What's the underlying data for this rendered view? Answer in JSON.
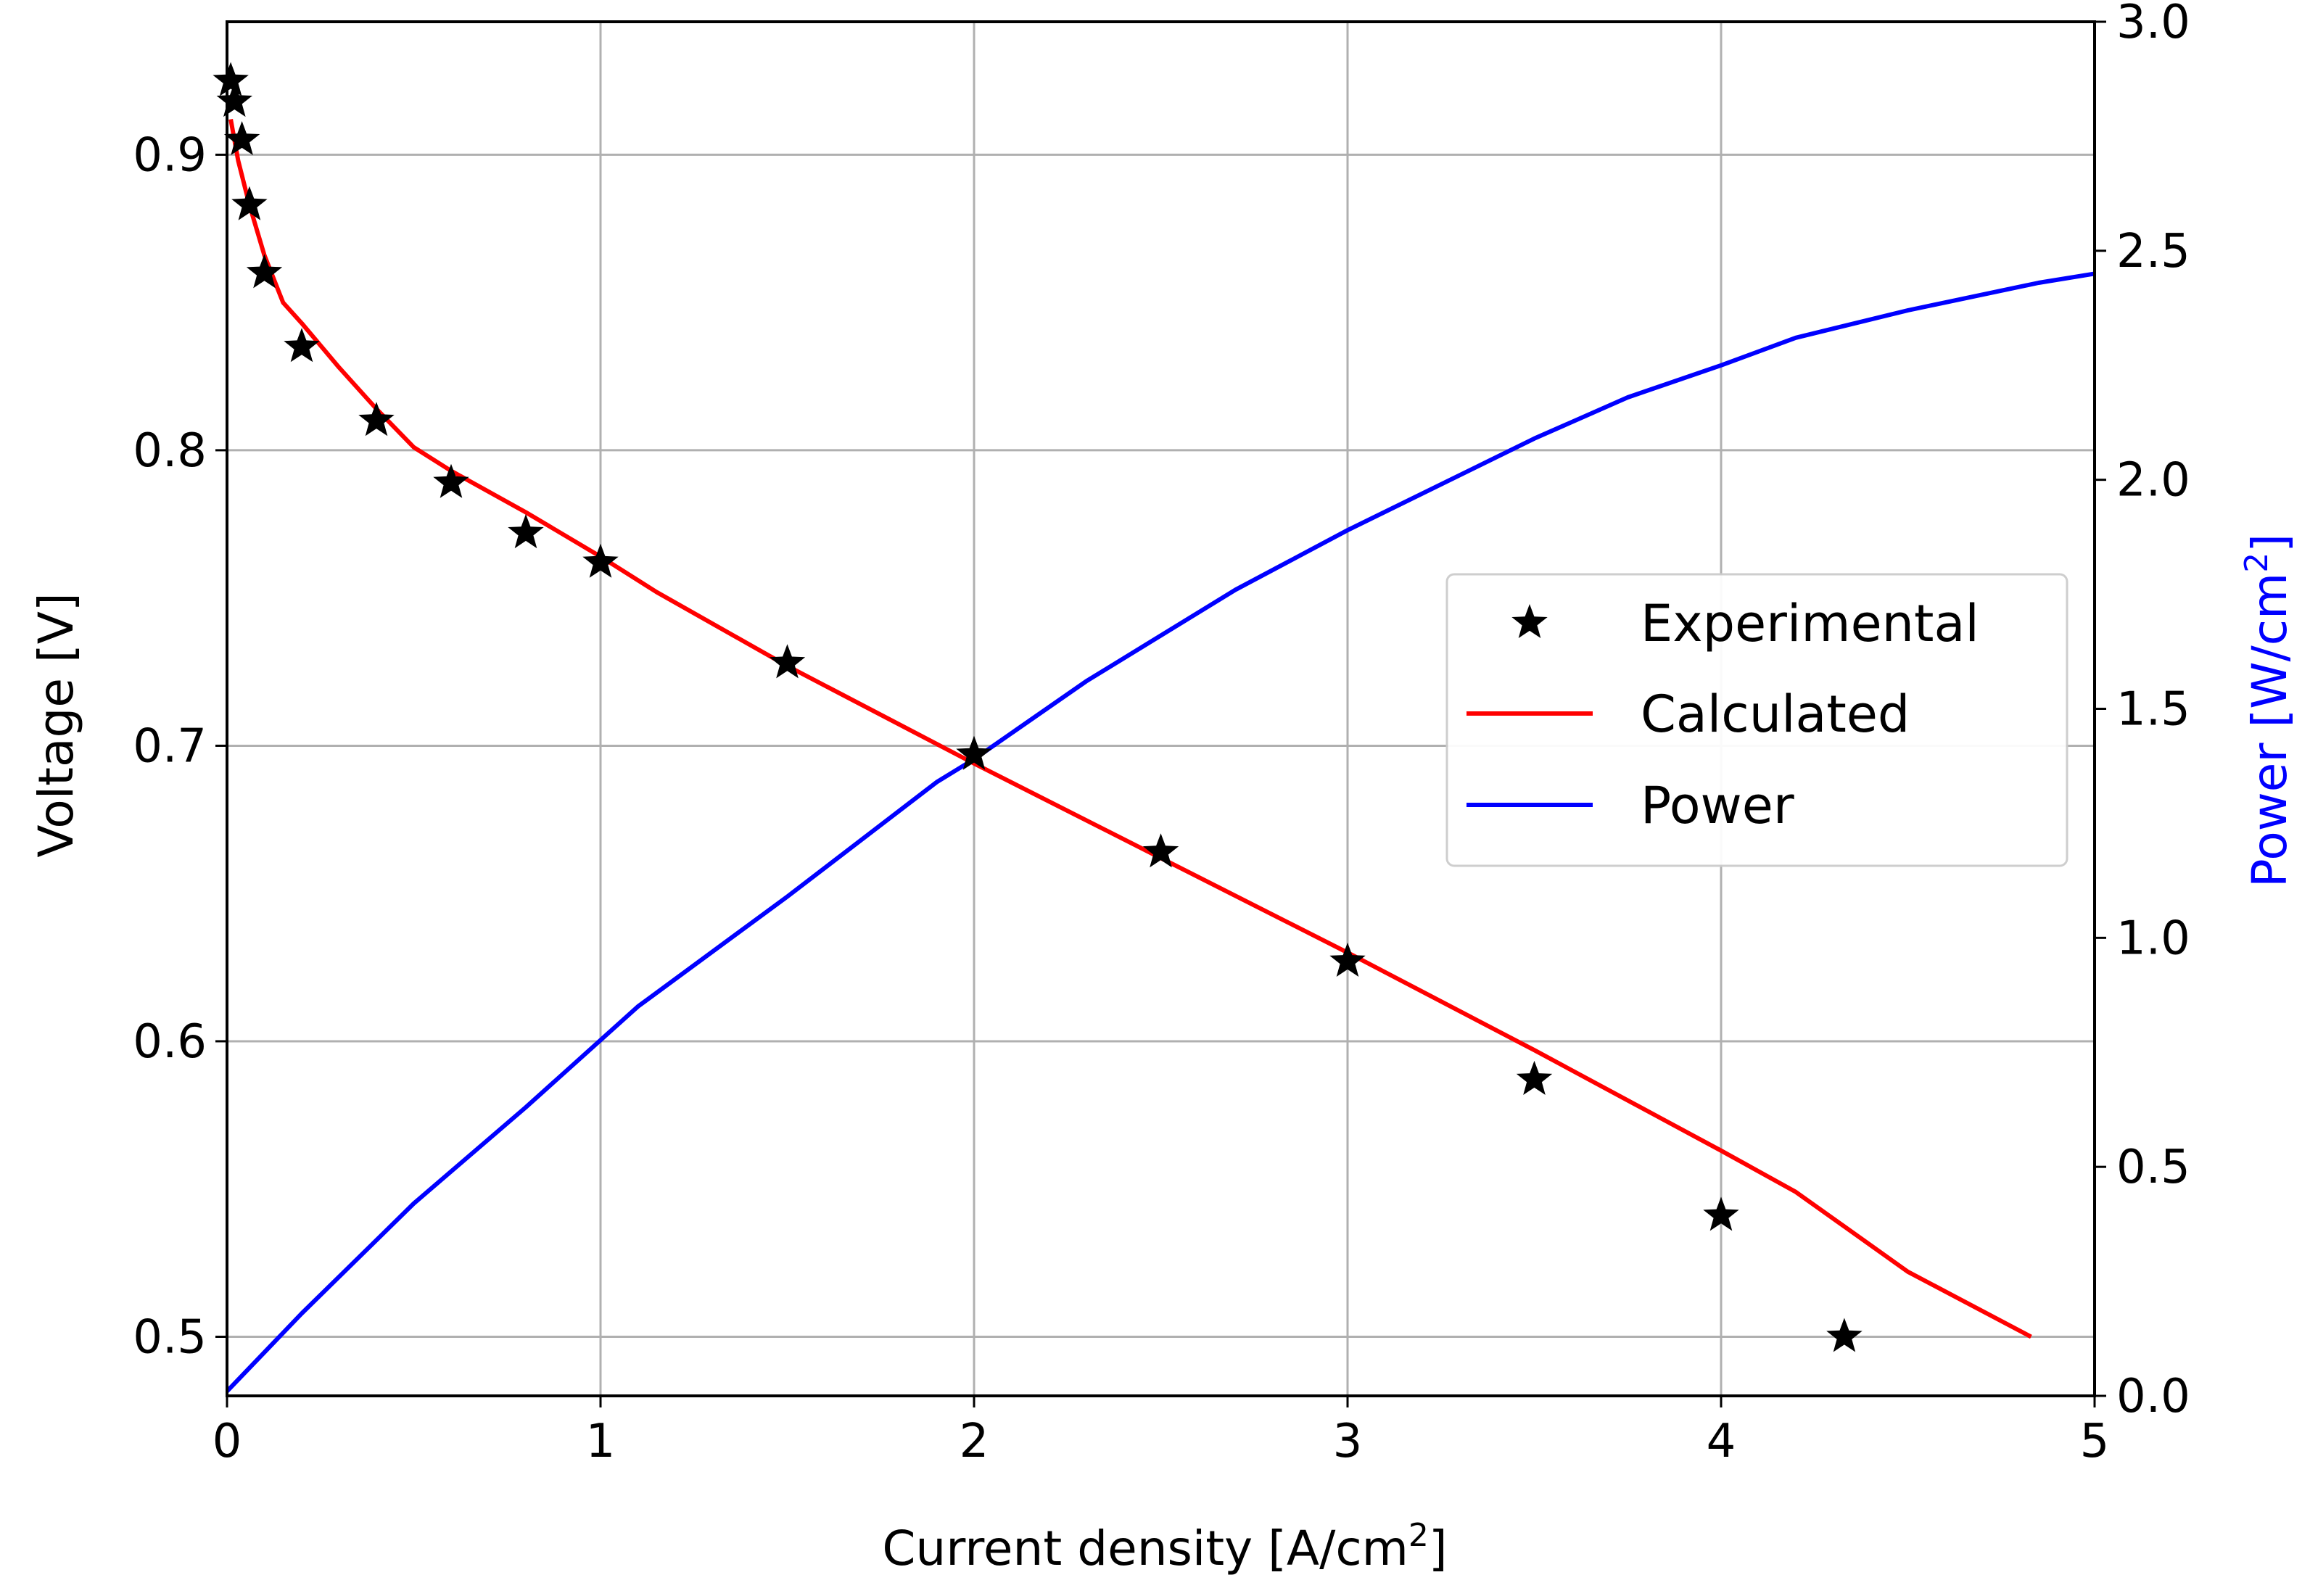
{
  "chart_data": {
    "type": "line",
    "title": "",
    "xlabel": "Current density  [A/cm",
    "xlabel_sup": "2",
    "xlabel_end": "]",
    "ylabel": "Voltage [V]",
    "y2label": "Power [W/cm",
    "y2label_sup": "2",
    "y2label_end": "]",
    "xlim": [
      0,
      5
    ],
    "ylim": [
      0.48,
      0.945
    ],
    "y2lim": [
      0,
      3.0
    ],
    "grid": true,
    "legend_position": "center-right",
    "x_ticks": [
      0,
      1,
      2,
      3,
      4,
      5
    ],
    "x_tick_labels": [
      "0",
      "1",
      "2",
      "3",
      "4",
      "5"
    ],
    "y_ticks": [
      0.5,
      0.6,
      0.7,
      0.8,
      0.9
    ],
    "y_tick_labels": [
      "0.5",
      "0.6",
      "0.7",
      "0.8",
      "0.9"
    ],
    "y2_ticks": [
      0,
      0.5,
      1.0,
      1.5,
      2.0,
      2.5,
      3.0
    ],
    "y2_tick_labels": [
      "0.0",
      "0.5",
      "1.0",
      "1.5",
      "2.0",
      "2.5",
      "3.0"
    ],
    "colors": {
      "experimental": "#000000",
      "calculated": "#ff0000",
      "power": "#0000ff",
      "grid": "#b0b0b0",
      "y2label": "#0000ff"
    },
    "series": [
      {
        "name": "Experimental",
        "kind": "scatter",
        "marker": "star",
        "axis": "left",
        "x": [
          0.01,
          0.02,
          0.04,
          0.06,
          0.1,
          0.2,
          0.4,
          0.6,
          0.8,
          1.0,
          1.5,
          2.0,
          2.5,
          3.0,
          3.5,
          4.0,
          4.33
        ],
        "y": [
          0.925,
          0.918,
          0.905,
          0.883,
          0.86,
          0.835,
          0.81,
          0.789,
          0.772,
          0.762,
          0.728,
          0.697,
          0.664,
          0.627,
          0.587,
          0.541,
          0.5
        ]
      },
      {
        "name": "Calculated",
        "kind": "line",
        "axis": "left",
        "x": [
          0.01,
          0.03,
          0.06,
          0.1,
          0.15,
          0.2,
          0.3,
          0.4,
          0.5,
          0.6,
          0.8,
          1.0,
          1.15,
          1.5,
          2.0,
          2.5,
          3.0,
          3.5,
          4.0,
          4.2,
          4.5,
          4.83
        ],
        "y": [
          0.912,
          0.898,
          0.883,
          0.866,
          0.85,
          0.843,
          0.828,
          0.814,
          0.801,
          0.793,
          0.779,
          0.764,
          0.752,
          0.727,
          0.694,
          0.662,
          0.63,
          0.597,
          0.563,
          0.549,
          0.522,
          0.5
        ]
      },
      {
        "name": "Power",
        "kind": "line",
        "axis": "right",
        "x": [
          0.0,
          0.2,
          0.5,
          0.8,
          1.1,
          1.5,
          1.9,
          2.0,
          2.3,
          2.7,
          3.0,
          3.5,
          3.75,
          4.0,
          4.2,
          4.5,
          4.85,
          5.0
        ],
        "y": [
          0.01,
          0.18,
          0.42,
          0.63,
          0.85,
          1.09,
          1.34,
          1.39,
          1.56,
          1.76,
          1.89,
          2.09,
          2.18,
          2.25,
          2.31,
          2.37,
          2.43,
          2.45
        ]
      }
    ],
    "legend": [
      {
        "label": "Experimental",
        "symbol": "star",
        "color": "#000000"
      },
      {
        "label": "Calculated",
        "symbol": "line",
        "color": "#ff0000"
      },
      {
        "label": "Power",
        "symbol": "line",
        "color": "#0000ff"
      }
    ]
  }
}
